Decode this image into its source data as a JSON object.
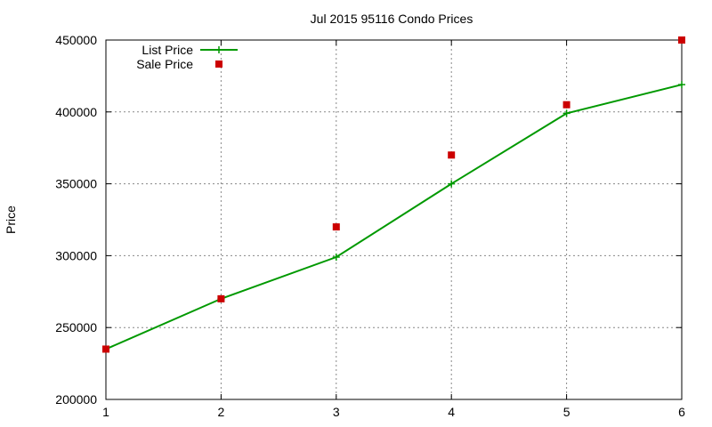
{
  "chart_data": {
    "type": "line",
    "title": "Jul 2015 95116 Condo Prices",
    "xlabel": "",
    "ylabel": "Price",
    "xlim": [
      1,
      6
    ],
    "ylim": [
      200000,
      450000
    ],
    "x_ticks": [
      "1",
      "2",
      "3",
      "4",
      "5",
      "6"
    ],
    "y_ticks": [
      "200000",
      "250000",
      "300000",
      "350000",
      "400000",
      "450000"
    ],
    "grid": true,
    "legend_position": "top-left",
    "x": [
      1,
      2,
      3,
      4,
      5,
      6
    ],
    "series": [
      {
        "name": "List Price",
        "style": "line-points",
        "marker": "plus",
        "color": "#009900",
        "values": [
          235000,
          270000,
          299000,
          350000,
          399000,
          419000
        ]
      },
      {
        "name": "Sale Price",
        "style": "points",
        "marker": "square",
        "color": "#cc0000",
        "values": [
          235000,
          270000,
          320000,
          370000,
          405000,
          450000
        ]
      }
    ]
  }
}
